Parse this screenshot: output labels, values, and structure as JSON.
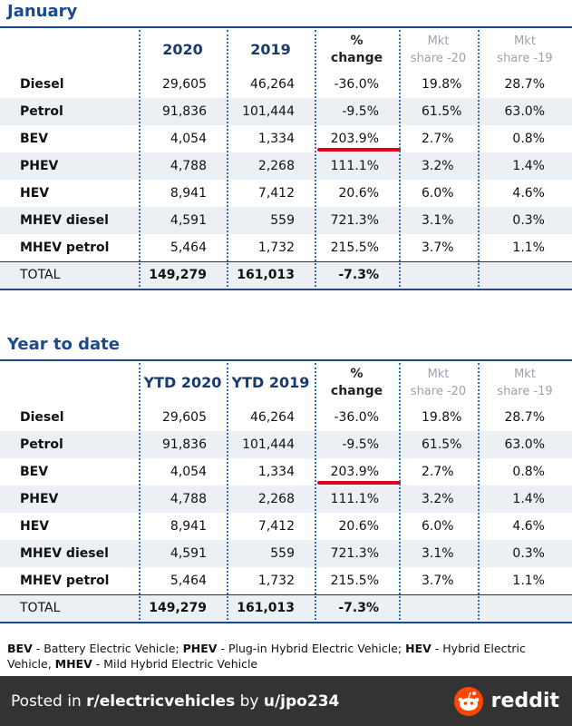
{
  "sections": [
    {
      "title": "January",
      "columns": [
        "2020",
        "2019",
        "%\nchange",
        "Mkt\nshare -20",
        "Mkt\nshare -19"
      ],
      "rows": [
        [
          "Diesel",
          "29,605",
          "46,264",
          "-36.0%",
          "19.8%",
          "28.7%"
        ],
        [
          "Petrol",
          "91,836",
          "101,444",
          "-9.5%",
          "61.5%",
          "63.0%"
        ],
        [
          "BEV",
          "4,054",
          "1,334",
          "203.9%",
          "2.7%",
          "0.8%"
        ],
        [
          "PHEV",
          "4,788",
          "2,268",
          "111.1%",
          "3.2%",
          "1.4%"
        ],
        [
          "HEV",
          "8,941",
          "7,412",
          "20.6%",
          "6.0%",
          "4.6%"
        ],
        [
          "MHEV diesel",
          "4,591",
          "559",
          "721.3%",
          "3.1%",
          "0.3%"
        ],
        [
          "MHEV petrol",
          "5,464",
          "1,732",
          "215.5%",
          "3.7%",
          "1.1%"
        ]
      ],
      "total": [
        "TOTAL",
        "149,279",
        "161,013",
        "-7.3%"
      ]
    },
    {
      "title": "Year to date",
      "columns": [
        "YTD 2020",
        "YTD 2019",
        "%\nchange",
        "Mkt\nshare -20",
        "Mkt\nshare -19"
      ],
      "rows": [
        [
          "Diesel",
          "29,605",
          "46,264",
          "-36.0%",
          "19.8%",
          "28.7%"
        ],
        [
          "Petrol",
          "91,836",
          "101,444",
          "-9.5%",
          "61.5%",
          "63.0%"
        ],
        [
          "BEV",
          "4,054",
          "1,334",
          "203.9%",
          "2.7%",
          "0.8%"
        ],
        [
          "PHEV",
          "4,788",
          "2,268",
          "111.1%",
          "3.2%",
          "1.4%"
        ],
        [
          "HEV",
          "8,941",
          "7,412",
          "20.6%",
          "6.0%",
          "4.6%"
        ],
        [
          "MHEV diesel",
          "4,591",
          "559",
          "721.3%",
          "3.1%",
          "0.3%"
        ],
        [
          "MHEV petrol",
          "5,464",
          "1,732",
          "215.5%",
          "3.7%",
          "1.1%"
        ]
      ],
      "total": [
        "TOTAL",
        "149,279",
        "161,013",
        "-7.3%"
      ]
    }
  ],
  "footnote": [
    {
      "abbr": "BEV",
      "text": " - Battery Electric Vehicle; "
    },
    {
      "abbr": "PHEV",
      "text": " - Plug-in Hybrid Electric Vehicle; "
    },
    {
      "abbr": "HEV",
      "text": " - Hybrid Electric Vehicle, "
    },
    {
      "abbr": "MHEV",
      "text": " - Mild Hybrid Electric Vehicle"
    }
  ],
  "footer": {
    "parts": [
      "Posted in ",
      "r/electricvehicles",
      " by ",
      "u/jpo234"
    ],
    "brand": "reddit"
  }
}
